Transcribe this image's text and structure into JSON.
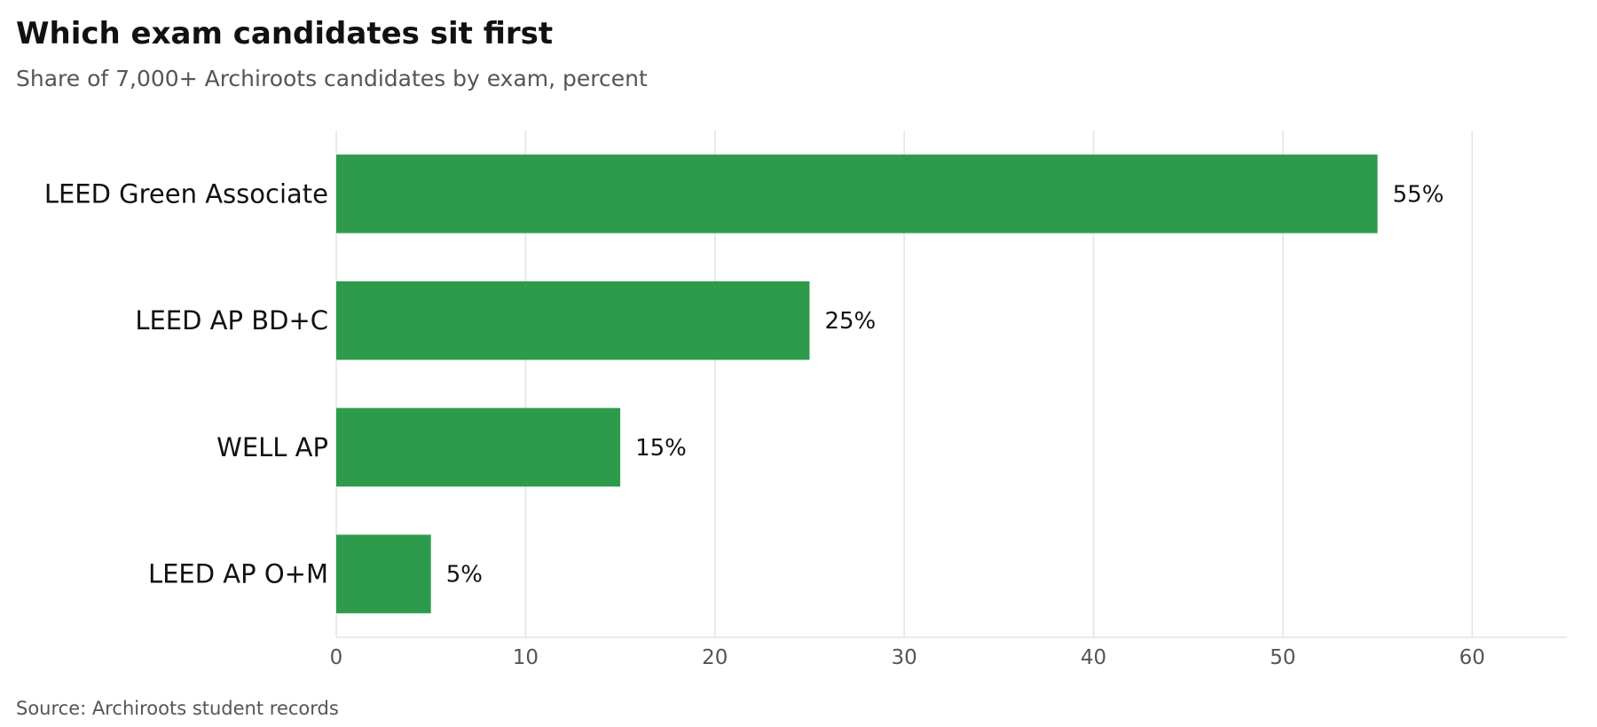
{
  "header": {
    "title": "Which exam candidates sit first",
    "subtitle": "Share of 7,000+ Archiroots candidates by exam, percent"
  },
  "footer": {
    "source": "Source: Archiroots student records"
  },
  "colors": {
    "bar": "#2e9b4c",
    "grid": "#e3e3e3",
    "tick_text": "#555555",
    "label_text": "#111111"
  },
  "chart_data": {
    "type": "bar",
    "orientation": "horizontal",
    "categories": [
      "LEED Green Associate",
      "LEED AP BD+C",
      "WELL AP",
      "LEED AP O+M"
    ],
    "values": [
      55,
      25,
      15,
      5
    ],
    "value_labels": [
      "55%",
      "25%",
      "15%",
      "5%"
    ],
    "xlim": [
      0,
      65
    ],
    "xticks": [
      0,
      10,
      20,
      30,
      40,
      50,
      60
    ],
    "grid": "vertical"
  }
}
